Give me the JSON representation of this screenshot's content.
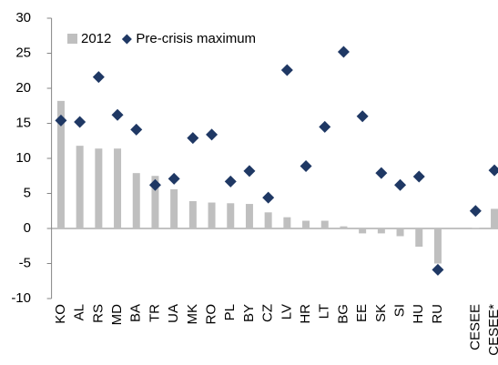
{
  "chart_data": {
    "type": "bar",
    "categories": [
      "KO",
      "AL",
      "RS",
      "MD",
      "BA",
      "TR",
      "UA",
      "MK",
      "RO",
      "PL",
      "BY",
      "CZ",
      "LV",
      "HR",
      "LT",
      "BG",
      "EE",
      "SK",
      "SI",
      "HU",
      "RU",
      null,
      "CESEE",
      "CESEE*"
    ],
    "series": [
      {
        "name": "2012",
        "type": "bar",
        "color": "#bfbfbf",
        "values": [
          18.2,
          11.8,
          11.4,
          11.4,
          7.9,
          7.5,
          5.6,
          3.9,
          3.7,
          3.6,
          3.5,
          2.3,
          1.6,
          1.1,
          1.1,
          0.3,
          -0.7,
          -0.7,
          -1.1,
          -2.6,
          -5.0,
          null,
          0.1,
          2.8
        ]
      },
      {
        "name": "Pre-crisis maximum",
        "type": "scatter",
        "color": "#1f3864",
        "values": [
          15.4,
          15.2,
          21.6,
          16.2,
          14.1,
          6.2,
          7.1,
          12.9,
          13.4,
          6.7,
          8.2,
          4.4,
          22.6,
          8.9,
          14.5,
          25.2,
          16.0,
          7.9,
          6.2,
          7.4,
          -5.9,
          null,
          2.5,
          8.3
        ]
      }
    ],
    "ylim": [
      -10,
      30
    ],
    "yticks": [
      -10,
      -5,
      0,
      5,
      10,
      15,
      20,
      25,
      30
    ],
    "grid": false,
    "legend": "top-left"
  }
}
